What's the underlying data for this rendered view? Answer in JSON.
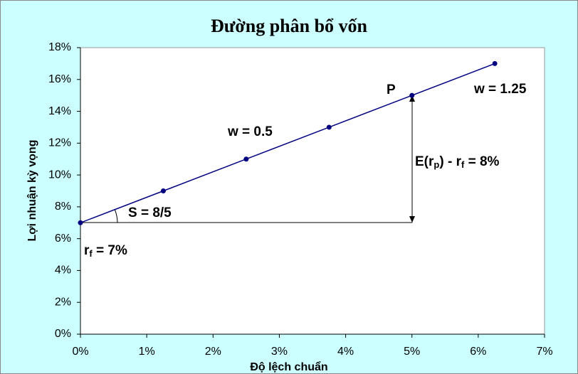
{
  "chart_data": {
    "type": "line",
    "title": "Đường phân bổ vốn",
    "xlabel": "Độ lệch chuẩn",
    "ylabel": "Lợi nhuận kỳ vọng",
    "x": [
      0,
      1.25,
      2.5,
      3.75,
      5,
      6.25
    ],
    "values": [
      7,
      9,
      11,
      13,
      15,
      17
    ],
    "color": "#000080",
    "xlim": [
      0,
      7
    ],
    "ylim": [
      0,
      18
    ],
    "xticks": [
      {
        "value": 0,
        "label": "0%"
      },
      {
        "value": 1,
        "label": "1%"
      },
      {
        "value": 2,
        "label": "2%"
      },
      {
        "value": 3,
        "label": "3%"
      },
      {
        "value": 4,
        "label": "4%"
      },
      {
        "value": 5,
        "label": "5%"
      },
      {
        "value": 6,
        "label": "6%"
      },
      {
        "value": 7,
        "label": "7%"
      }
    ],
    "yticks": [
      {
        "value": 0,
        "label": "0%"
      },
      {
        "value": 2,
        "label": "2%"
      },
      {
        "value": 4,
        "label": "4%"
      },
      {
        "value": 6,
        "label": "6%"
      },
      {
        "value": 8,
        "label": "8%"
      },
      {
        "value": 10,
        "label": "10%"
      },
      {
        "value": 12,
        "label": "12%"
      },
      {
        "value": 14,
        "label": "14%"
      },
      {
        "value": 16,
        "label": "16%"
      },
      {
        "value": 18,
        "label": "18%"
      }
    ],
    "grid": false,
    "annotations": [
      [
        "P"
      ],
      [
        "w = 0.5"
      ],
      [
        "w = 1.25"
      ],
      [
        "S = 8/5"
      ],
      [
        "r",
        "f",
        " = 7%"
      ],
      [
        "E(r",
        "p",
        ") - r",
        "f",
        " = 8%"
      ]
    ]
  }
}
